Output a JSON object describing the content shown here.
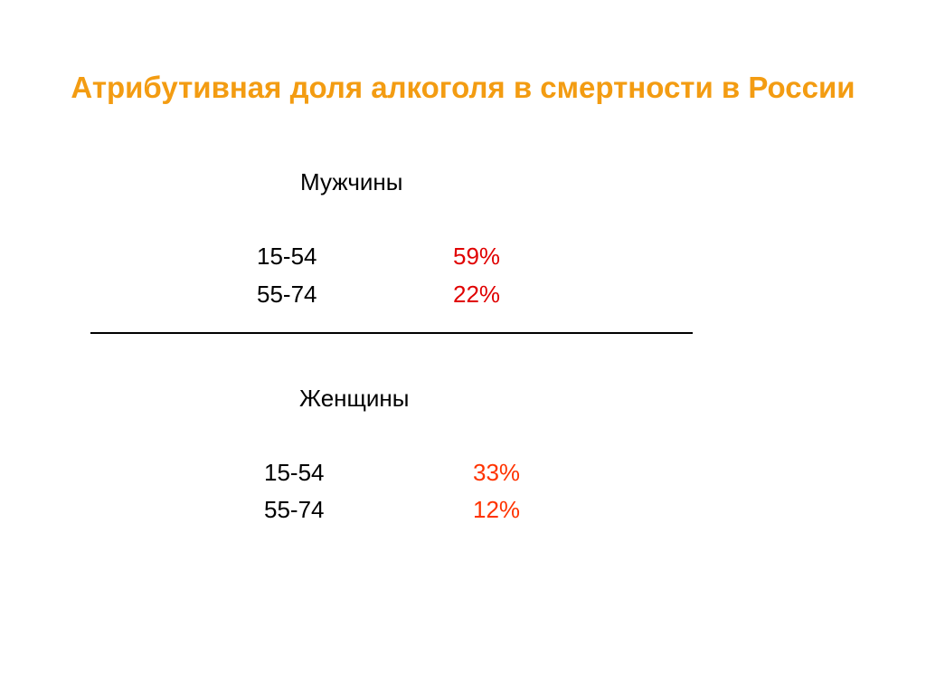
{
  "title": "Атрибутивная доля алкоголя в смертности в России",
  "colors": {
    "title": "#F39C12",
    "men_values": "#E00000",
    "women_values": "#FF3300"
  },
  "men": {
    "heading": "Мужчины",
    "rows": [
      {
        "age": "15-54",
        "value": "59%"
      },
      {
        "age": "55-74",
        "value": "22%"
      }
    ]
  },
  "women": {
    "heading": "Женщины",
    "rows": [
      {
        "age": "15-54",
        "value": "33%"
      },
      {
        "age": "55-74",
        "value": "12%"
      }
    ]
  }
}
